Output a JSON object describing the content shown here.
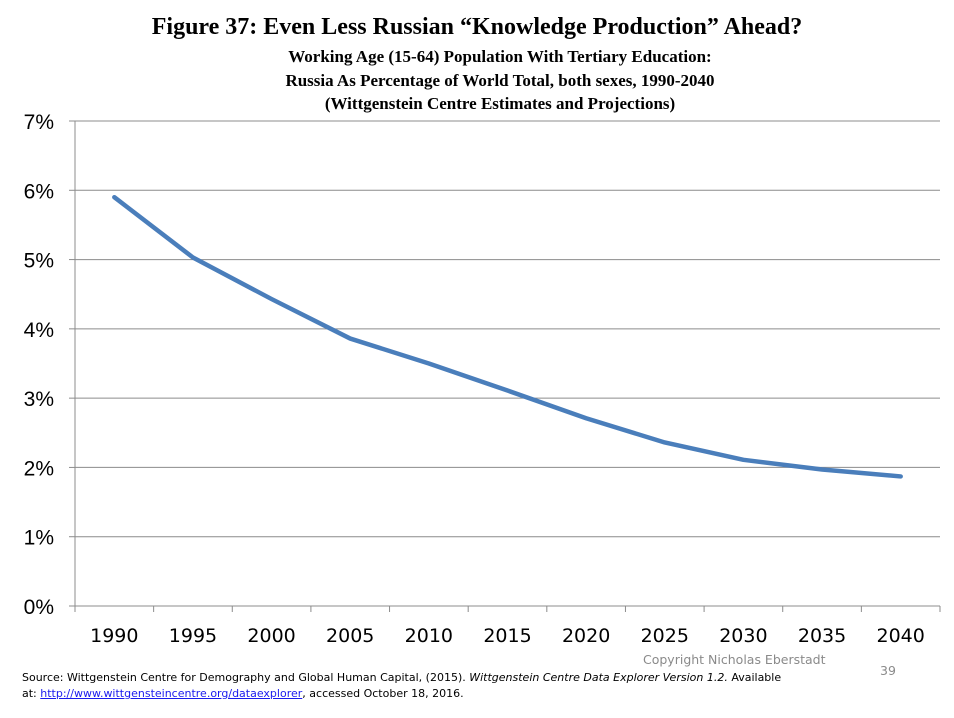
{
  "slide": {
    "title": "Figure 37: Even Less Russian “Knowledge Production” Ahead?",
    "subtitle_line1": "Working Age (15-64) Population With Tertiary Education:",
    "subtitle_line2": "Russia As Percentage of World Total, both sexes, 1990-2040",
    "subtitle_line3": "(Wittgenstein Centre Estimates and Projections)",
    "copyright": "Copyright Nicholas Eberstadt",
    "page_number": "39",
    "source_prefix": "Source: Wittgenstein Centre for Demography and Global Human Capital, (2015). ",
    "source_italic": "Wittgenstein Centre Data Explorer Version 1.2.",
    "source_available": " Available",
    "source_at": "at: ",
    "source_link": "http://www.wittgensteincentre.org/dataexplorer",
    "source_suffix": ", accessed October 18, 2016."
  },
  "chart_data": {
    "type": "line",
    "x": [
      1990,
      1995,
      2000,
      2005,
      2010,
      2015,
      2020,
      2025,
      2030,
      2035,
      2040
    ],
    "categories": [
      "1990",
      "1995",
      "2000",
      "2005",
      "2010",
      "2015",
      "2020",
      "2025",
      "2030",
      "2035",
      "2040"
    ],
    "series": [
      {
        "values": [
          5.9,
          5.03,
          4.43,
          3.86,
          3.5,
          3.11,
          2.71,
          2.36,
          2.11,
          1.97,
          1.87
        ],
        "color": "#4a7ebb"
      }
    ],
    "ylim": [
      0,
      7
    ],
    "yticks": [
      "0%",
      "1%",
      "2%",
      "3%",
      "4%",
      "5%",
      "6%",
      "7%"
    ],
    "grid": true,
    "legend": "none"
  }
}
